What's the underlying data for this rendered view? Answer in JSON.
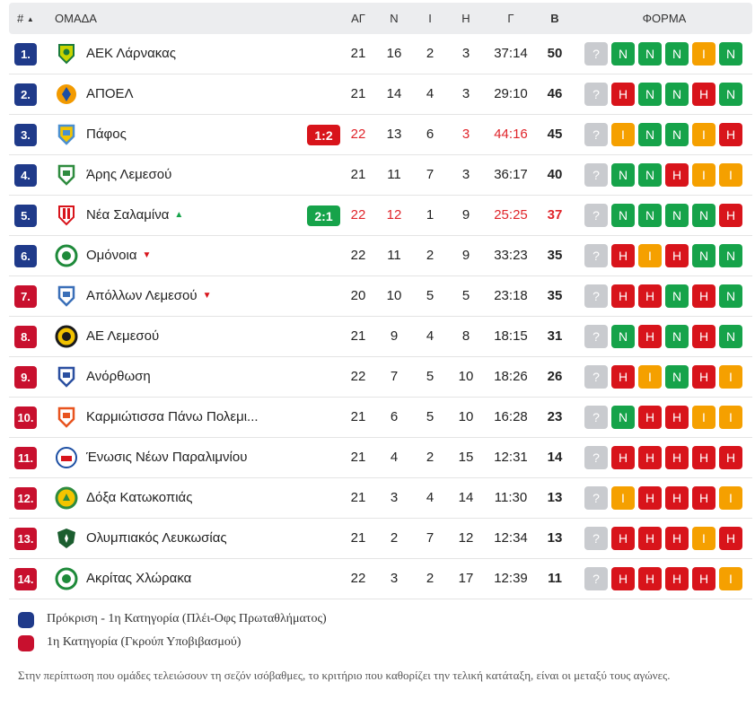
{
  "header": {
    "rank": "#",
    "sort_icon": "triangle-up-icon",
    "team": "ΟΜΑΔΑ",
    "played": "ΑΓ",
    "won": "Ν",
    "drawn": "Ι",
    "lost": "Η",
    "goals": "Γ",
    "points": "Β",
    "form": "ΦΟΡΜΑ"
  },
  "colors": {
    "blue": "#1f3a8a",
    "red": "#c8102e",
    "win": "#16a34a",
    "draw": "#f5a000",
    "loss": "#d8141b",
    "unknown": "#c9cbcf",
    "live_loss": "#d8141b",
    "live_win": "#16a34a",
    "trend_up": "#16a34a",
    "trend_down": "#d8141b"
  },
  "rows": [
    {
      "rank": "1.",
      "zone": "blue",
      "team": "ΑΕΚ Λάρνακας",
      "logo": "aek-larnaca-logo",
      "logo_color": "#c9d400",
      "logo_color2": "#1a7a3c",
      "live": "",
      "live_type": "",
      "trend": "",
      "played": "21",
      "won": "16",
      "drawn": "2",
      "lost": "3",
      "goals": "37:14",
      "points": "50",
      "live_row": false,
      "form": [
        "?",
        "Ν",
        "Ν",
        "Ν",
        "Ι",
        "Ν"
      ]
    },
    {
      "rank": "2.",
      "zone": "blue",
      "team": "ΑΠΟΕΛ",
      "logo": "apoel-logo",
      "logo_color": "#f29a00",
      "logo_color2": "#1d4fa3",
      "live": "",
      "live_type": "",
      "trend": "",
      "played": "21",
      "won": "14",
      "drawn": "4",
      "lost": "3",
      "goals": "29:10",
      "points": "46",
      "live_row": false,
      "form": [
        "?",
        "Η",
        "Ν",
        "Ν",
        "Η",
        "Ν"
      ]
    },
    {
      "rank": "3.",
      "zone": "blue",
      "team": "Πάφος",
      "logo": "pafos-logo",
      "logo_color": "#4a8fd0",
      "logo_color2": "#f4c400",
      "live": "1:2",
      "live_type": "loss",
      "trend": "",
      "played": "22",
      "won": "13",
      "drawn": "6",
      "lost": "3",
      "goals": "44:16",
      "points": "45",
      "live_row": true,
      "form": [
        "?",
        "Ι",
        "Ν",
        "Ν",
        "Ι",
        "Η"
      ]
    },
    {
      "rank": "4.",
      "zone": "blue",
      "team": "Άρης Λεμεσού",
      "logo": "aris-limassol-logo",
      "logo_color": "#2e8b3e",
      "logo_color2": "#ffffff",
      "live": "",
      "live_type": "",
      "trend": "",
      "played": "21",
      "won": "11",
      "drawn": "7",
      "lost": "3",
      "goals": "36:17",
      "points": "40",
      "live_row": false,
      "form": [
        "?",
        "Ν",
        "Ν",
        "Η",
        "Ι",
        "Ι"
      ]
    },
    {
      "rank": "5.",
      "zone": "blue",
      "team": "Νέα Σαλαμίνα",
      "logo": "nea-salamis-logo",
      "logo_color": "#d8141b",
      "logo_color2": "#ffffff",
      "live": "2:1",
      "live_type": "win",
      "trend": "up",
      "played": "22",
      "won": "12",
      "drawn": "1",
      "lost": "9",
      "goals": "25:25",
      "points": "37",
      "live_row": true,
      "form": [
        "?",
        "Ν",
        "Ν",
        "Ν",
        "Ν",
        "Η"
      ]
    },
    {
      "rank": "6.",
      "zone": "blue",
      "team": "Ομόνοια",
      "logo": "omonia-logo",
      "logo_color": "#1e8a3a",
      "logo_color2": "#ffffff",
      "live": "",
      "live_type": "",
      "trend": "down",
      "played": "22",
      "won": "11",
      "drawn": "2",
      "lost": "9",
      "goals": "33:23",
      "points": "35",
      "live_row": false,
      "form": [
        "?",
        "Η",
        "Ι",
        "Η",
        "Ν",
        "Ν"
      ]
    },
    {
      "rank": "7.",
      "zone": "red",
      "team": "Απόλλων Λεμεσού",
      "logo": "apollon-limassol-logo",
      "logo_color": "#3a6fb8",
      "logo_color2": "#ffffff",
      "live": "",
      "live_type": "",
      "trend": "down",
      "played": "20",
      "won": "10",
      "drawn": "5",
      "lost": "5",
      "goals": "23:18",
      "points": "35",
      "live_row": false,
      "form": [
        "?",
        "Η",
        "Η",
        "Ν",
        "Η",
        "Ν"
      ]
    },
    {
      "rank": "8.",
      "zone": "red",
      "team": "ΑΕ Λεμεσού",
      "logo": "ae-limassol-logo",
      "logo_color": "#1b1b1b",
      "logo_color2": "#f2c200",
      "live": "",
      "live_type": "",
      "trend": "",
      "played": "21",
      "won": "9",
      "drawn": "4",
      "lost": "8",
      "goals": "18:15",
      "points": "31",
      "live_row": false,
      "form": [
        "?",
        "Ν",
        "Η",
        "Ν",
        "Η",
        "Ν"
      ]
    },
    {
      "rank": "9.",
      "zone": "red",
      "team": "Ανόρθωση",
      "logo": "anorthosis-logo",
      "logo_color": "#2a4fa0",
      "logo_color2": "#ffffff",
      "live": "",
      "live_type": "",
      "trend": "",
      "played": "22",
      "won": "7",
      "drawn": "5",
      "lost": "10",
      "goals": "18:26",
      "points": "26",
      "live_row": false,
      "form": [
        "?",
        "Η",
        "Ι",
        "Ν",
        "Η",
        "Ι"
      ]
    },
    {
      "rank": "10.",
      "zone": "red",
      "team": "Καρμιώτισσα Πάνω Πολεμι...",
      "logo": "karmiotissa-logo",
      "logo_color": "#e8531e",
      "logo_color2": "#ffffff",
      "live": "",
      "live_type": "",
      "trend": "",
      "played": "21",
      "won": "6",
      "drawn": "5",
      "lost": "10",
      "goals": "16:28",
      "points": "23",
      "live_row": false,
      "form": [
        "?",
        "Ν",
        "Η",
        "Η",
        "Ι",
        "Ι"
      ]
    },
    {
      "rank": "11.",
      "zone": "red",
      "team": "Ένωσις Νέων Παραλιμνίου",
      "logo": "enp-logo",
      "logo_color": "#d8141b",
      "logo_color2": "#1d4fa3",
      "live": "",
      "live_type": "",
      "trend": "",
      "played": "21",
      "won": "4",
      "drawn": "2",
      "lost": "15",
      "goals": "12:31",
      "points": "14",
      "live_row": false,
      "form": [
        "?",
        "Η",
        "Η",
        "Η",
        "Η",
        "Η"
      ]
    },
    {
      "rank": "12.",
      "zone": "red",
      "team": "Δόξα Κατωκοπιάς",
      "logo": "doxa-logo",
      "logo_color": "#2e8b3e",
      "logo_color2": "#f4c400",
      "live": "",
      "live_type": "",
      "trend": "",
      "played": "21",
      "won": "3",
      "drawn": "4",
      "lost": "14",
      "goals": "11:30",
      "points": "13",
      "live_row": false,
      "form": [
        "?",
        "Ι",
        "Η",
        "Η",
        "Η",
        "Ι"
      ]
    },
    {
      "rank": "13.",
      "zone": "red",
      "team": "Ολυμπιακός Λευκωσίας",
      "logo": "olympiakos-nicosia-logo",
      "logo_color": "#1b5e2f",
      "logo_color2": "#111111",
      "live": "",
      "live_type": "",
      "trend": "",
      "played": "21",
      "won": "2",
      "drawn": "7",
      "lost": "12",
      "goals": "12:34",
      "points": "13",
      "live_row": false,
      "form": [
        "?",
        "Η",
        "Η",
        "Η",
        "Ι",
        "Η"
      ]
    },
    {
      "rank": "14.",
      "zone": "red",
      "team": "Ακρίτας Χλώρακα",
      "logo": "akritas-logo",
      "logo_color": "#1e8a3a",
      "logo_color2": "#ffffff",
      "live": "",
      "live_type": "",
      "trend": "",
      "played": "22",
      "won": "3",
      "drawn": "2",
      "lost": "17",
      "goals": "12:39",
      "points": "11",
      "live_row": false,
      "form": [
        "?",
        "Η",
        "Η",
        "Η",
        "Η",
        "Ι"
      ]
    }
  ],
  "legend": [
    {
      "color": "blue",
      "text": "Πρόκριση - 1η Κατηγορία (Πλέι-Οφς Πρωταθλήματος)"
    },
    {
      "color": "red",
      "text": "1η Κατηγορία (Γκρούπ Υποβιβασμού)"
    }
  ],
  "note": "Στην περίπτωση που ομάδες τελειώσουν τη σεζόν ισόβαθμες, το κριτήριο που καθορίζει την τελική κατάταξη, είναι οι μεταξύ τους αγώνες."
}
